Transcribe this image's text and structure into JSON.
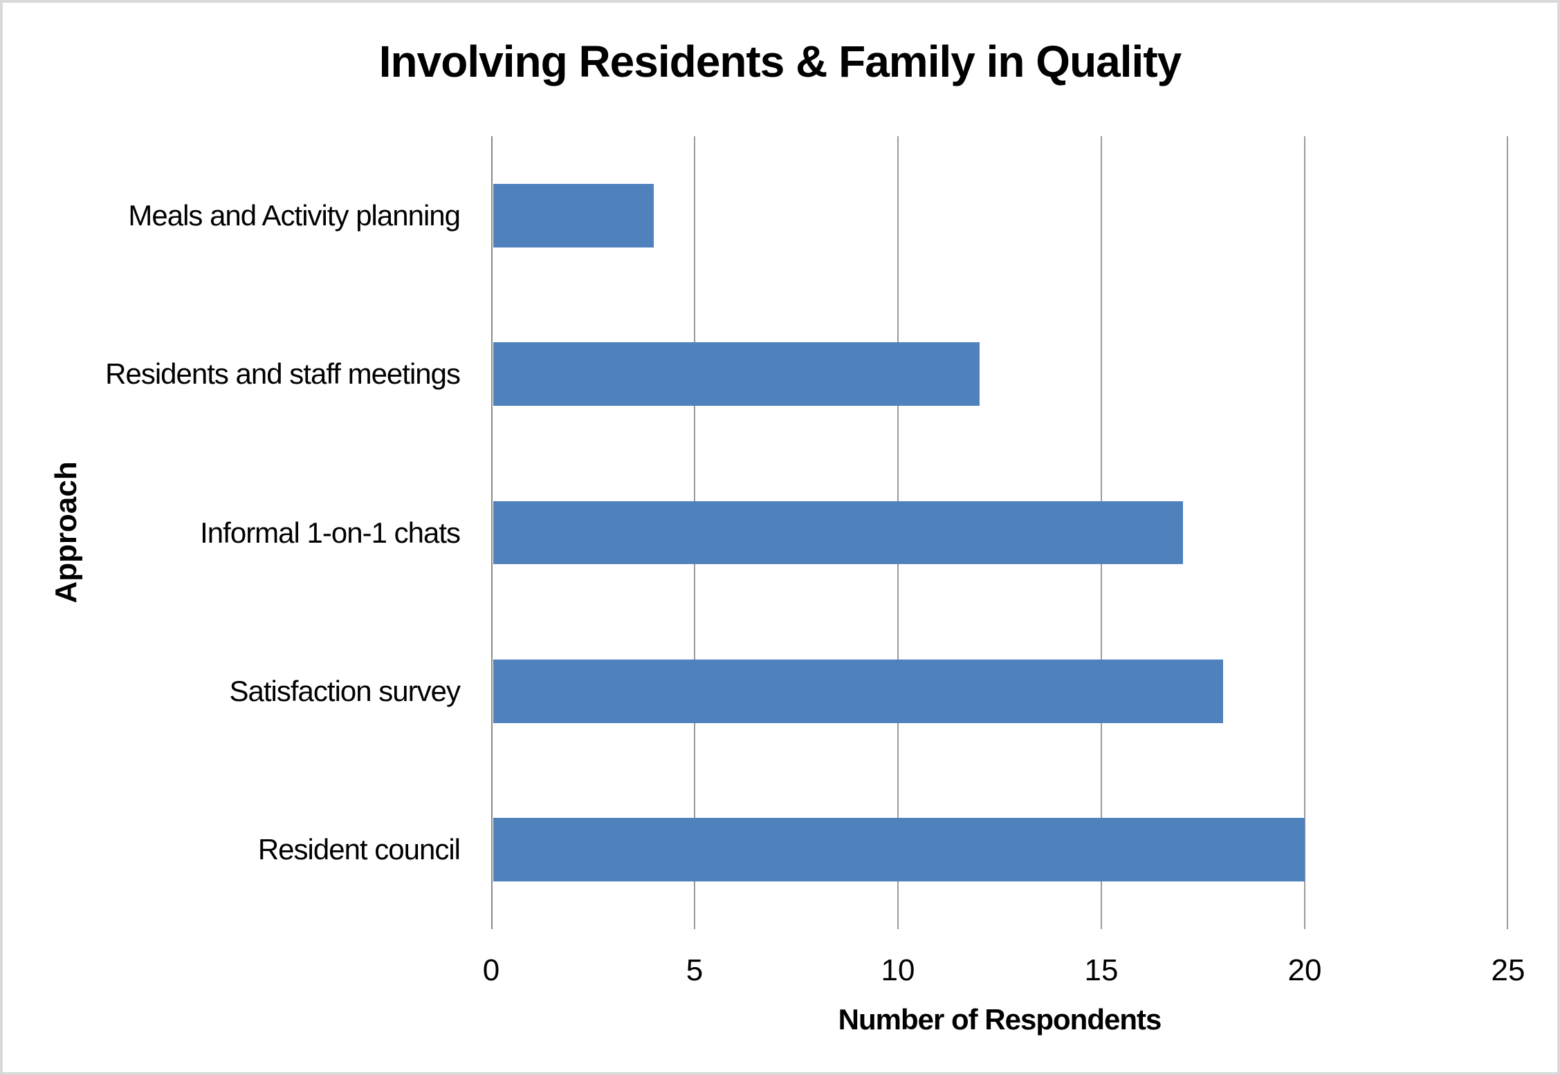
{
  "frame": {
    "background": "#ffffff",
    "border_color": "#d9d9d9"
  },
  "chart_data": {
    "type": "bar",
    "orientation": "horizontal",
    "title": "Involving Residents & Family in Quality",
    "xlabel": "Number of Respondents",
    "ylabel": "Approach",
    "categories": [
      "Meals and Activity planning",
      "Residents and staff meetings",
      "Informal 1-on-1 chats",
      "Satisfaction survey",
      "Resident council"
    ],
    "values": [
      4,
      12,
      17,
      18,
      20
    ],
    "xlim": [
      0,
      25
    ],
    "xticks": [
      0,
      5,
      10,
      15,
      20,
      25
    ],
    "grid": true,
    "legend_position": "none",
    "colors": {
      "bar": "#4F81BD",
      "gridline": "#9a9a9a",
      "axis": "#8a8a8a",
      "text": "#000000"
    }
  }
}
